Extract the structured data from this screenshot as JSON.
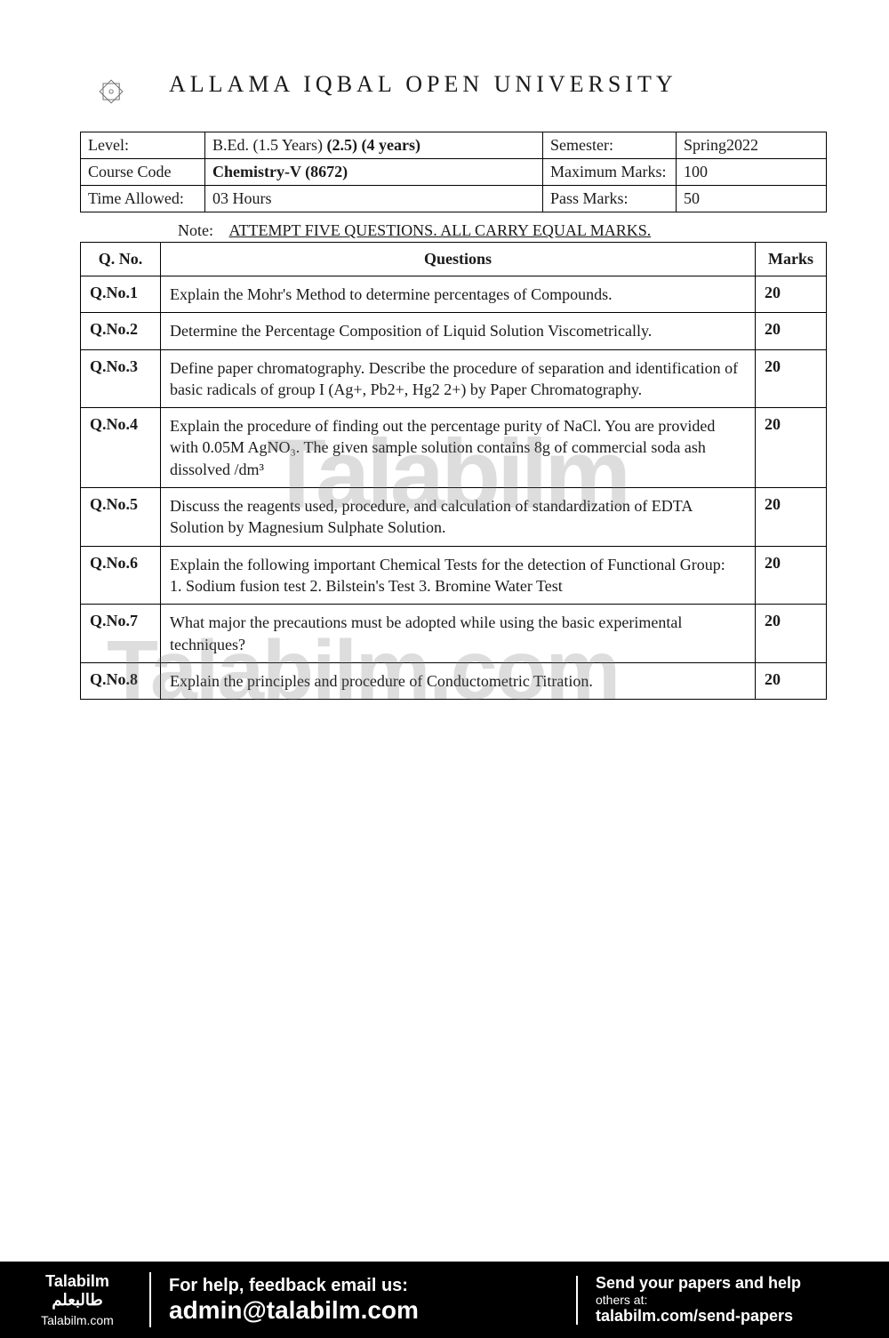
{
  "header": {
    "university": "ALLAMA IQBAL OPEN UNIVERSITY"
  },
  "info": {
    "level_label": "Level:",
    "level_value": "B.Ed. (1.5 Years)",
    "level_handwritten": "(2.5) (4 years)",
    "semester_label": "Semester:",
    "semester_value": "Spring2022",
    "course_label": "Course Code",
    "course_value": "Chemistry-V (8672)",
    "maxmarks_label": "Maximum Marks:",
    "maxmarks_value": "100",
    "time_label": "Time Allowed:",
    "time_value": "03 Hours",
    "passmarks_label": "Pass Marks:",
    "passmarks_value": "50"
  },
  "note": {
    "label": "Note:",
    "text": "ATTEMPT FIVE QUESTIONS. ALL CARRY EQUAL MARKS."
  },
  "table": {
    "head_qno": "Q. No.",
    "head_question": "Questions",
    "head_marks": "Marks",
    "rows": [
      {
        "qno": "Q.No.1",
        "text": "Explain the Mohr's Method to determine percentages of Compounds.",
        "marks": "20"
      },
      {
        "qno": "Q.No.2",
        "text": "Determine the Percentage Composition of Liquid Solution Viscometrically.",
        "marks": "20"
      },
      {
        "qno": "Q.No.3",
        "text": "Define paper chromatography. Describe the procedure of separation and identification of basic radicals of group I (Ag+, Pb2+, Hg2 2+) by Paper Chromatography.",
        "marks": "20"
      },
      {
        "qno": "Q.No.4",
        "text": "Explain the procedure of finding out the percentage purity of NaCl. You are provided with 0.05M AgNO₃. The given sample solution contains 8g of commercial soda ash dissolved /dm³",
        "marks": "20"
      },
      {
        "qno": "Q.No.5",
        "text": "Discuss the reagents used, procedure, and calculation of standardization of EDTA Solution by Magnesium Sulphate Solution.",
        "marks": "20"
      },
      {
        "qno": "Q.No.6",
        "text": "Explain the following important Chemical Tests for the detection of Functional Group:\n    1. Sodium fusion test 2. Bilstein's Test 3. Bromine Water Test",
        "marks": "20"
      },
      {
        "qno": "Q.No.7",
        "text": "What major the precautions must be adopted while using the basic experimental techniques?",
        "marks": "20"
      },
      {
        "qno": "Q.No.8",
        "text": "Explain the principles and procedure of Conductometric Titration.",
        "marks": "20"
      }
    ]
  },
  "watermark": {
    "wm1": "Talabilm",
    "wm2": "Talabilm.com"
  },
  "footer": {
    "brand": "Talabilm",
    "brand_ar": "طالبعلم",
    "site": "Talabilm.com",
    "help_l1": "For help, feedback email us:",
    "help_l2": "admin@talabilm.com",
    "send_l1": "Send your papers and help",
    "send_l2": "others at:",
    "send_l3": "talabilm.com/send-papers"
  }
}
